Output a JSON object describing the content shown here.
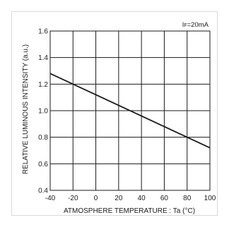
{
  "chart_data": {
    "type": "line",
    "condition_label": "IF=20mA",
    "condition_main": "I",
    "condition_sub": "F",
    "condition_tail": "=20mA",
    "xlabel": "ATMOSPHERE TEMPERATURE : Ta  (°C)",
    "ylabel": "RELATIVE LUMINOUS INTENSITY  (a.u.)",
    "xlim": [
      -40,
      100
    ],
    "ylim": [
      0.4,
      1.6
    ],
    "grid": true,
    "x_ticks": [
      "-40",
      "-20",
      "0",
      "20",
      "40",
      "60",
      "80",
      "100"
    ],
    "y_ticks": [
      "0.4",
      "0.6",
      "0.8",
      "1.0",
      "1.2",
      "1.4",
      "1.6"
    ],
    "series": [
      {
        "x": [
          -40,
          100
        ],
        "y": [
          1.28,
          0.72
        ]
      }
    ],
    "colors": {
      "line": "#1a1a1a",
      "grid": "#1a1a1a"
    }
  }
}
